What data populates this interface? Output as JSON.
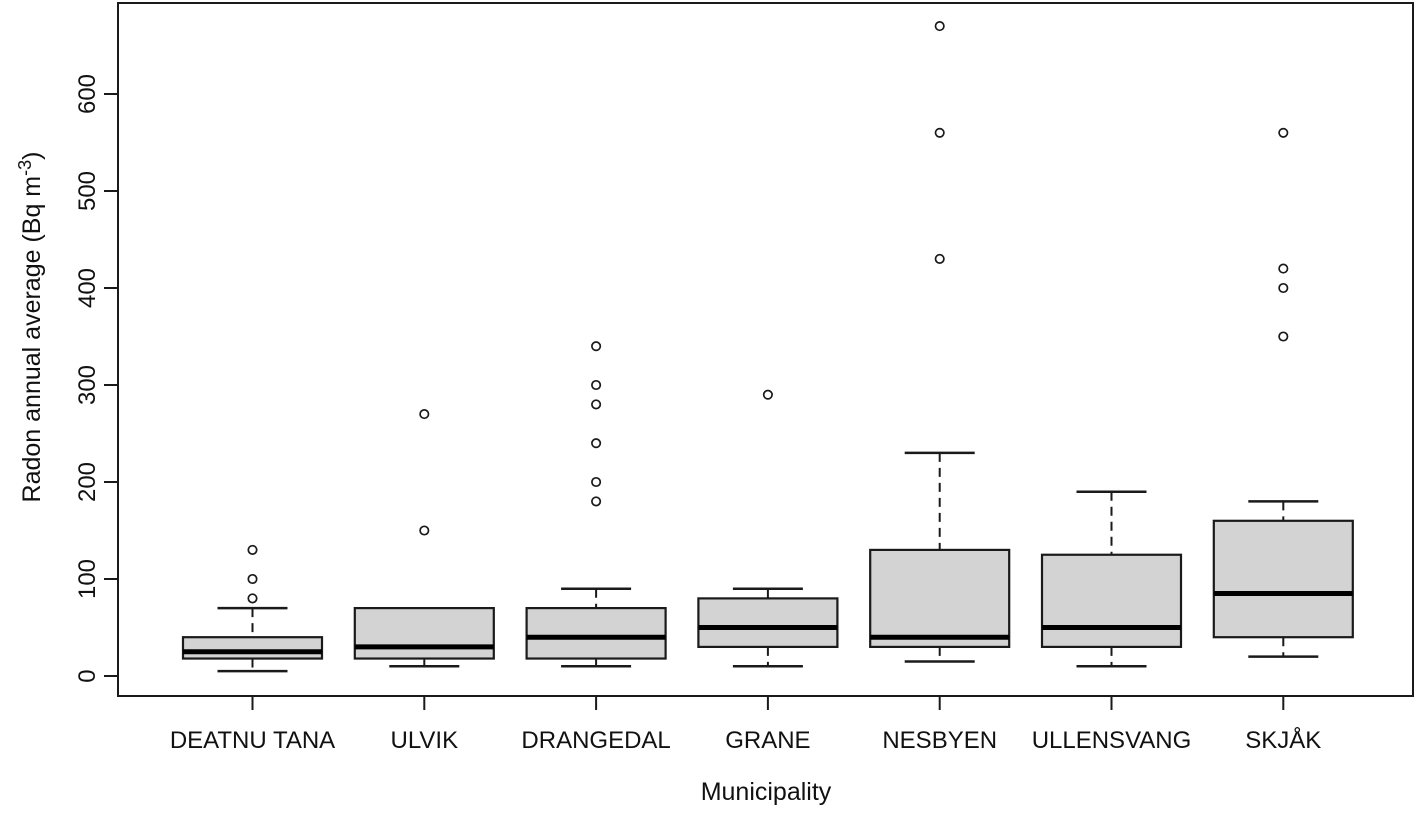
{
  "chart_data": {
    "type": "boxplot",
    "title": "",
    "xlabel": "Municipality",
    "ylabel": {
      "base": "Radon annual average (Bq m",
      "sup": "-3",
      "end": ")"
    },
    "y_axis": {
      "ticks": [
        0,
        100,
        200,
        300,
        400,
        500,
        600
      ],
      "range": [
        0,
        700
      ],
      "grid": false
    },
    "categories": [
      "DEATNU TANA",
      "ULVIK",
      "DRANGEDAL",
      "GRANE",
      "NESBYEN",
      "ULLENSVANG",
      "SKJÅK"
    ],
    "series": [
      {
        "municipality": "DEATNU TANA",
        "whisker_low": 5,
        "q1": 18,
        "median": 25,
        "q3": 40,
        "whisker_high": 70,
        "outliers": [
          80,
          100,
          130
        ]
      },
      {
        "municipality": "ULVIK",
        "whisker_low": 10,
        "q1": 18,
        "median": 30,
        "q3": 70,
        "whisker_high": 70,
        "outliers": [
          150,
          270
        ]
      },
      {
        "municipality": "DRANGEDAL",
        "whisker_low": 10,
        "q1": 18,
        "median": 40,
        "q3": 70,
        "whisker_high": 90,
        "outliers": [
          180,
          200,
          240,
          280,
          300,
          340
        ]
      },
      {
        "municipality": "GRANE",
        "whisker_low": 10,
        "q1": 30,
        "median": 50,
        "q3": 80,
        "whisker_high": 90,
        "outliers": [
          290
        ]
      },
      {
        "municipality": "NESBYEN",
        "whisker_low": 15,
        "q1": 30,
        "median": 40,
        "q3": 130,
        "whisker_high": 230,
        "outliers": [
          430,
          560,
          670
        ]
      },
      {
        "municipality": "ULLENSVANG",
        "whisker_low": 10,
        "q1": 30,
        "median": 50,
        "q3": 125,
        "whisker_high": 190,
        "outliers": []
      },
      {
        "municipality": "SKJÅK",
        "whisker_low": 20,
        "q1": 40,
        "median": 85,
        "q3": 160,
        "whisker_high": 180,
        "outliers": [
          350,
          400,
          420,
          560
        ]
      }
    ],
    "style": {
      "box_fill": "#d3d3d3",
      "line_color": "#1a1a1a",
      "median_color": "#000000",
      "background": "#ffffff"
    },
    "legend": null
  }
}
